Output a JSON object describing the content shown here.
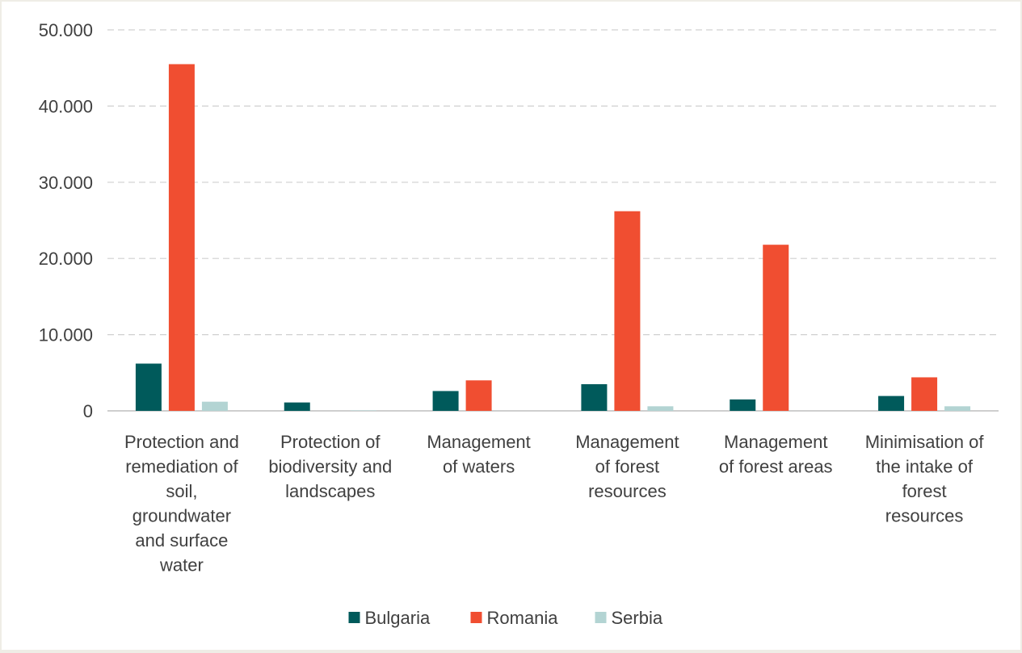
{
  "chart_data": {
    "type": "bar",
    "title": "",
    "xlabel": "",
    "ylabel": "",
    "ylim": [
      0,
      50000
    ],
    "y_ticks": [
      0,
      10000,
      20000,
      30000,
      40000,
      50000
    ],
    "y_tick_labels": [
      "0",
      "10.000",
      "20.000",
      "30.000",
      "40.000",
      "50.000"
    ],
    "grid": "horizontal dashed",
    "legend_position": "bottom",
    "categories": [
      [
        "Protection and",
        "remediation of",
        "soil,",
        "groundwater",
        "and surface",
        "water"
      ],
      [
        "Protection of",
        "biodiversity and",
        "landscapes"
      ],
      [
        "Management",
        "of waters"
      ],
      [
        "Management",
        "of forest",
        "resources"
      ],
      [
        "Management",
        "of forest areas"
      ],
      [
        "Minimisation of",
        "the intake of",
        "forest",
        "resources"
      ]
    ],
    "series": [
      {
        "name": "Bulgaria",
        "color": "#005a5b",
        "values": [
          6200,
          1100,
          2600,
          3500,
          1500,
          1950
        ]
      },
      {
        "name": "Romania",
        "color": "#f04e31",
        "values": [
          45500,
          0,
          4000,
          26200,
          21800,
          4400
        ]
      },
      {
        "name": "Serbia",
        "color": "#b3d4d3",
        "values": [
          1200,
          60,
          0,
          600,
          0,
          600
        ]
      }
    ]
  }
}
